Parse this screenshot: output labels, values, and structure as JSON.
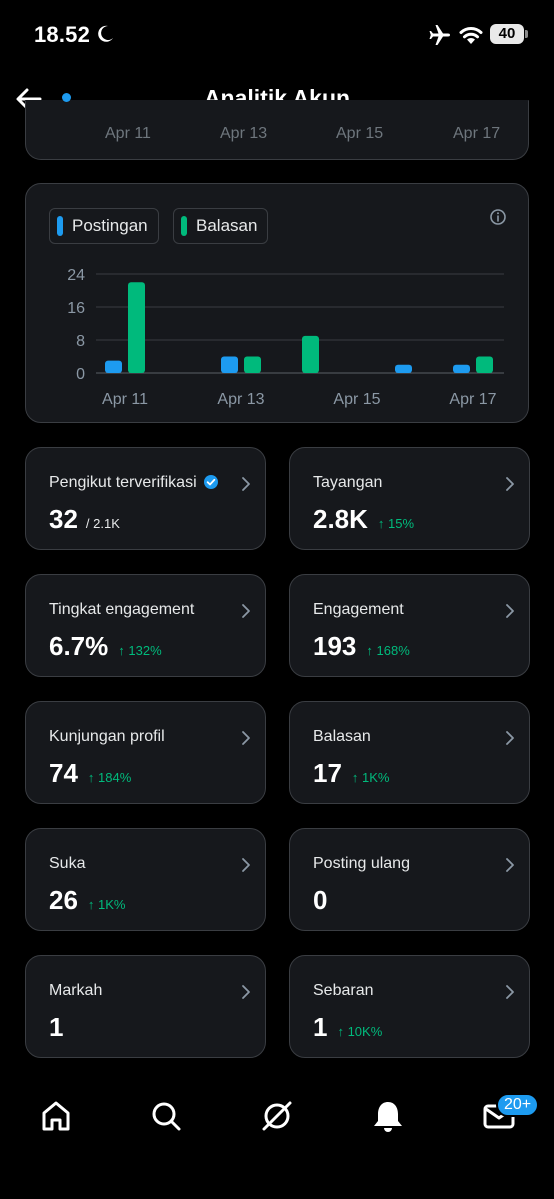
{
  "status_bar": {
    "time": "18.52",
    "battery": "40"
  },
  "header": {
    "title": "Analitik Akun"
  },
  "previous_chart": {
    "ticks": [
      "Apr 11",
      "Apr 13",
      "Apr 15",
      "Apr 17"
    ]
  },
  "chart_data": {
    "type": "bar",
    "categories": [
      "Apr 11",
      "Apr 12",
      "Apr 13",
      "Apr 14",
      "Apr 15",
      "Apr 16",
      "Apr 17"
    ],
    "x_tick_labels": [
      "Apr 11",
      "Apr 13",
      "Apr 15",
      "Apr 17"
    ],
    "series": [
      {
        "name": "Postingan",
        "color": "#1d9bf0",
        "values": [
          3,
          0,
          4,
          0,
          0,
          2,
          2
        ]
      },
      {
        "name": "Balasan",
        "color": "#00ba7c",
        "values": [
          22,
          0,
          4,
          9,
          0,
          0,
          4
        ]
      }
    ],
    "y_ticks": [
      "24",
      "16",
      "8",
      "0"
    ],
    "ylim": [
      0,
      24
    ],
    "grid": true,
    "legend_position": "top-left"
  },
  "stats": [
    {
      "name": "verified-followers",
      "label": "Pengikut terverifikasi",
      "value": "32",
      "sub": "/ 2.1K",
      "change": "",
      "verified": true
    },
    {
      "name": "impressions",
      "label": "Tayangan",
      "value": "2.8K",
      "sub": "",
      "change": "↑ 15%"
    },
    {
      "name": "engagement-rate",
      "label": "Tingkat engagement",
      "value": "6.7%",
      "sub": "",
      "change": "↑ 132%"
    },
    {
      "name": "engagements",
      "label": "Engagement",
      "value": "193",
      "sub": "",
      "change": "↑ 168%"
    },
    {
      "name": "profile-visits",
      "label": "Kunjungan profil",
      "value": "74",
      "sub": "",
      "change": "↑ 184%"
    },
    {
      "name": "replies",
      "label": "Balasan",
      "value": "17",
      "sub": "",
      "change": "↑ 1K%"
    },
    {
      "name": "likes",
      "label": "Suka",
      "value": "26",
      "sub": "",
      "change": "↑ 1K%"
    },
    {
      "name": "reposts",
      "label": "Posting ulang",
      "value": "0",
      "sub": "",
      "change": ""
    },
    {
      "name": "bookmarks",
      "label": "Markah",
      "value": "1",
      "sub": "",
      "change": ""
    },
    {
      "name": "shares",
      "label": "Sebaran",
      "value": "1",
      "sub": "",
      "change": "↑ 10K%"
    }
  ],
  "bottom_nav": {
    "items": [
      "home-icon",
      "search-icon",
      "grok-icon",
      "bell-icon",
      "mail-icon"
    ],
    "badge": "20+"
  },
  "colors": {
    "background": "#000000",
    "card": "#16181c",
    "border": "#3a3d42",
    "accent": "#1d9bf0",
    "positive": "#00ba7c"
  }
}
